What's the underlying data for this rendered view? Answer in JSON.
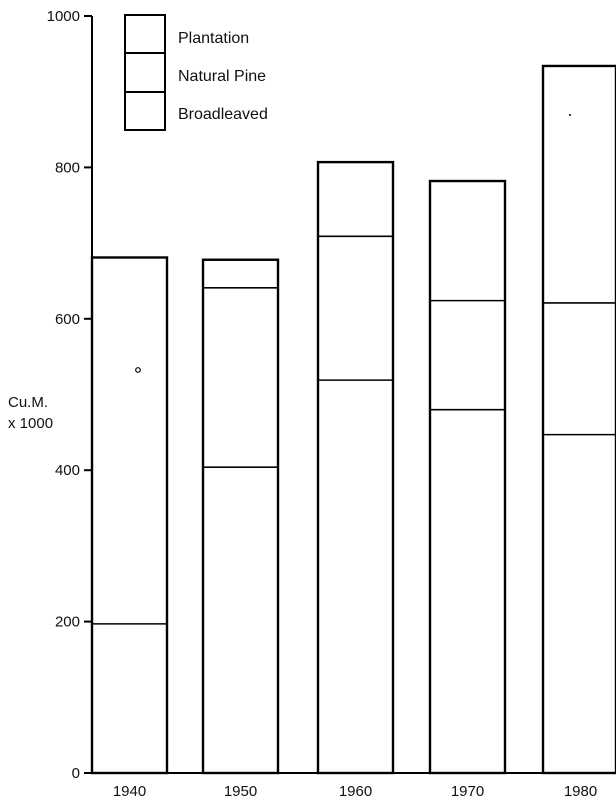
{
  "chart_data": {
    "type": "bar",
    "stacked": true,
    "categories": [
      "1940",
      "1950",
      "1960",
      "1970",
      "1980"
    ],
    "series": [
      {
        "name": "Broadleaved",
        "values": [
          197,
          404,
          519,
          480,
          447
        ]
      },
      {
        "name": "Natural Pine",
        "values": [
          484,
          237,
          190,
          144,
          174
        ]
      },
      {
        "name": "Plantation",
        "values": [
          0,
          37,
          98,
          158,
          313
        ]
      }
    ],
    "totals": [
      681,
      678,
      807,
      782,
      934
    ],
    "ylabel": [
      "Cu.M.",
      "x 1000"
    ],
    "yticks": [
      "0",
      "200",
      "400",
      "600",
      "800",
      "1000"
    ],
    "ylim": [
      0,
      1000
    ],
    "legend": {
      "placement": "top-left",
      "entries": [
        "Plantation",
        "Natural Pine",
        "Broadleaved"
      ]
    },
    "grid": false,
    "colors": {
      "line": "#000000",
      "fill": "#ffffff"
    }
  }
}
